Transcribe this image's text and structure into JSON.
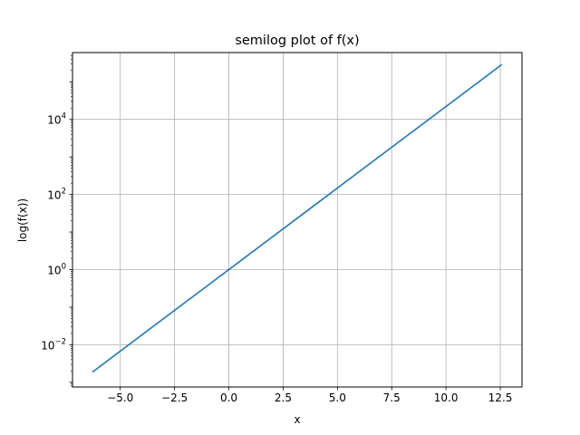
{
  "chart_data": {
    "type": "line",
    "title": "semilog plot of f(x)",
    "xlabel": "x",
    "ylabel": "log(f(x))",
    "xlim": [
      -7.2,
      13.5
    ],
    "ylim": [
      0.00075,
      600000
    ],
    "yscale": "log",
    "grid": true,
    "x_ticks": [
      -5.0,
      -2.5,
      0.0,
      2.5,
      5.0,
      7.5,
      10.0,
      12.5
    ],
    "x_tick_labels": [
      "−5.0",
      "−2.5",
      "0.0",
      "2.5",
      "5.0",
      "7.5",
      "10.0",
      "12.5"
    ],
    "y_ticks": [
      0.01,
      1,
      100,
      10000
    ],
    "y_tick_labels": [
      {
        "base": "10",
        "exp": "−2"
      },
      {
        "base": "10",
        "exp": "0"
      },
      {
        "base": "10",
        "exp": "2"
      },
      {
        "base": "10",
        "exp": "4"
      }
    ],
    "series": [
      {
        "color": "#1f77b4",
        "x": [
          -6.2832,
          -3.1416,
          0.0,
          3.1416,
          6.2832,
          9.4248,
          12.5664
        ],
        "y": [
          0.001867,
          0.04321,
          1.0,
          23.14,
          535.5,
          12392,
          286751
        ]
      }
    ]
  }
}
